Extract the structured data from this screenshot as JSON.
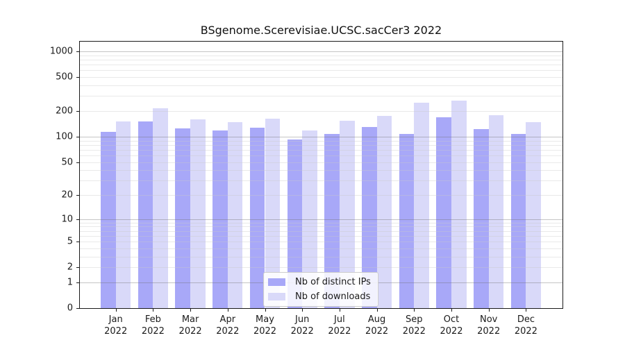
{
  "chart_data": {
    "type": "bar",
    "title": "BSgenome.Scerevisiae.UCSC.sacCer3 2022",
    "x_year": "2022",
    "categories": [
      "Jan",
      "Feb",
      "Mar",
      "Apr",
      "May",
      "Jun",
      "Jul",
      "Aug",
      "Sep",
      "Oct",
      "Nov",
      "Dec"
    ],
    "series": [
      {
        "name": "Nb of distinct IPs",
        "color": "#a8a8f8",
        "values": [
          115,
          150,
          125,
          119,
          127,
          93,
          108,
          129,
          107,
          169,
          123,
          108
        ]
      },
      {
        "name": "Nb of downloads",
        "color": "#d9d9f9",
        "values": [
          150,
          217,
          161,
          148,
          164,
          118,
          155,
          176,
          250,
          267,
          179,
          148
        ]
      }
    ],
    "y_scale": "log1p",
    "y_tick_values": [
      0,
      1,
      2,
      5,
      10,
      20,
      50,
      100,
      200,
      500,
      1000
    ],
    "ylim": [
      0,
      1300
    ],
    "grid": "minor log gridlines on, drawn above bars",
    "legend_position": "bottom-center",
    "colors": {
      "major_grid": "#c6c6c6",
      "minor_grid": "#eaeaea",
      "axis": "#1a1a1a"
    }
  }
}
